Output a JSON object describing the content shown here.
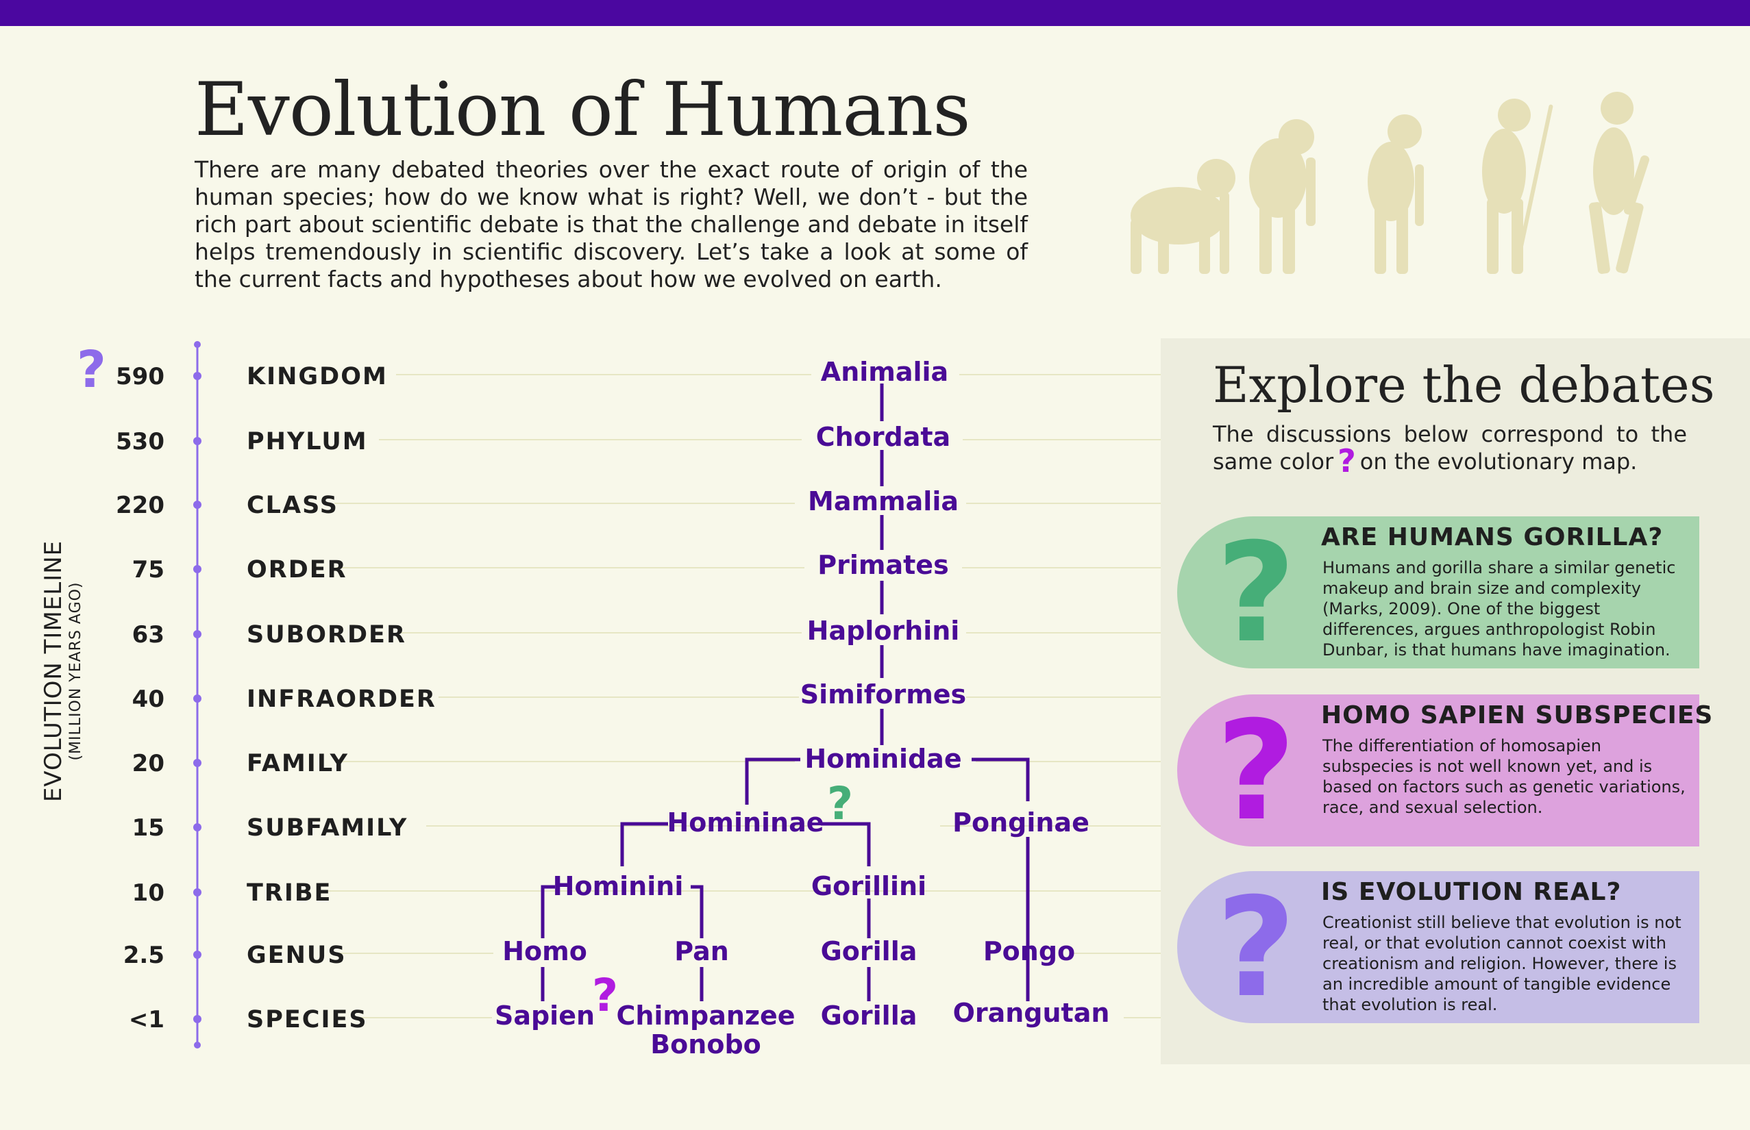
{
  "header": {
    "title": "Evolution of Humans",
    "intro": "There are many debated theories over the exact route of origin of the human species; how do we know what is right? Well, we don’t - but the rich part about scientific debate is that the challenge and debate in itself helps tremendously in scientific discovery. Let’s take a look at some of the current facts and hypotheses about how we evolved on earth."
  },
  "timeline": {
    "label": "EVOLUTION TIMELINE",
    "sublabel": "(MILLION YEARS AGO)",
    "rows": [
      {
        "value": "590",
        "rank": "KINGDOM"
      },
      {
        "value": "530",
        "rank": "PHYLUM"
      },
      {
        "value": "220",
        "rank": "CLASS"
      },
      {
        "value": "75",
        "rank": "ORDER"
      },
      {
        "value": "63",
        "rank": "SUBORDER"
      },
      {
        "value": "40",
        "rank": "INFRAORDER"
      },
      {
        "value": "20",
        "rank": "FAMILY"
      },
      {
        "value": "15",
        "rank": "SUBFAMILY"
      },
      {
        "value": "10",
        "rank": "TRIBE"
      },
      {
        "value": "2.5",
        "rank": "GENUS"
      },
      {
        "value": "<1",
        "rank": "SPECIES"
      }
    ]
  },
  "taxa": {
    "animalia": "Animalia",
    "chordata": "Chordata",
    "mammalia": "Mammalia",
    "primates": "Primates",
    "haplorhini": "Haplorhini",
    "simiformes": "Simiformes",
    "hominidae": "Hominidae",
    "homininae": "Homininae",
    "ponginae": "Ponginae",
    "hominini": "Hominini",
    "gorillini": "Gorillini",
    "homo": "Homo",
    "pan": "Pan",
    "gorilla_genus": "Gorilla",
    "pongo": "Pongo",
    "sapien": "Sapien",
    "chimpanzee": "Chimpanzee",
    "bonobo": "Bonobo",
    "gorilla_species": "Gorilla",
    "orangutan": "Orangutan"
  },
  "markers": {
    "question": "?"
  },
  "debates": {
    "title": "Explore the debates",
    "subtitle_before": "The discussions below correspond to the same color",
    "subtitle_after": "on the evolutionary map.",
    "cards": [
      {
        "heading": "ARE HUMANS GORILLA?",
        "body": "Humans and gorilla share a similar genetic makeup and brain size and complexity (Marks, 2009). One of the biggest differences, argues anthropologist Robin Dunbar, is that humans have imagination."
      },
      {
        "heading": "HOMO SAPIEN SUBSPECIES",
        "body": "The differentiation of homosapien subspecies is not well known yet, and is based on factors such as genetic variations, race, and sexual selection."
      },
      {
        "heading": "IS EVOLUTION REAL?",
        "body": "Creationist still believe that evolution is not real, or that evolution cannot coexist with creationism and religion. However, there is an incredible amount of tangible evidence that evolution is real."
      }
    ]
  },
  "colors": {
    "accent": "#4b07a0",
    "taxon": "#4a0b96",
    "green": "#46ae78",
    "magenta": "#b01ce0",
    "violet": "#8d6bea"
  }
}
